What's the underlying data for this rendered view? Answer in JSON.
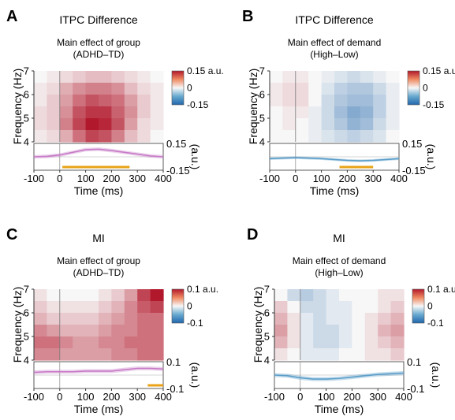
{
  "chart_data": [
    {
      "panel": "A",
      "type": "heatmap",
      "title": "ITPC Difference",
      "subtitle": [
        "Main effect of group",
        "(ADHD–TD)"
      ],
      "xlabel": "Time (ms)",
      "ylabel": "Frequency (Hz)",
      "xlim": [
        -100,
        400
      ],
      "ylim": [
        4,
        7
      ],
      "xticks": [
        "-100",
        "0",
        "100",
        "200",
        "300",
        "400"
      ],
      "yticks": [
        "4",
        "5",
        "6",
        "7"
      ],
      "x": [
        -75,
        -25,
        25,
        75,
        125,
        175,
        225,
        275,
        325,
        375
      ],
      "y": [
        6.75,
        6.25,
        5.75,
        5.25,
        4.75,
        4.25
      ],
      "z": [
        [
          0.0,
          0.01,
          0.02,
          0.03,
          0.04,
          0.04,
          0.03,
          0.02,
          0.01,
          0.0
        ],
        [
          0.01,
          0.02,
          0.05,
          0.07,
          0.08,
          0.08,
          0.07,
          0.04,
          0.02,
          0.01
        ],
        [
          0.01,
          0.03,
          0.06,
          0.09,
          0.11,
          0.1,
          0.09,
          0.06,
          0.03,
          0.01
        ],
        [
          0.02,
          0.03,
          0.07,
          0.11,
          0.13,
          0.13,
          0.1,
          0.07,
          0.03,
          0.01
        ],
        [
          0.02,
          0.03,
          0.08,
          0.12,
          0.15,
          0.14,
          0.11,
          0.06,
          0.02,
          0.01
        ],
        [
          0.01,
          0.02,
          0.05,
          0.09,
          0.12,
          0.11,
          0.08,
          0.04,
          0.02,
          0.0
        ]
      ],
      "colorbar": {
        "labels": [
          "0.15 a.u.",
          "0",
          "-0.15"
        ],
        "range": [
          -0.15,
          0.15
        ]
      },
      "trace": {
        "color": "#c77ac7",
        "x": [
          -100,
          -50,
          0,
          50,
          100,
          150,
          200,
          250,
          300,
          350,
          400
        ],
        "y": [
          0.0,
          0.005,
          0.02,
          0.05,
          0.08,
          0.085,
          0.07,
          0.05,
          0.03,
          0.01,
          0.0
        ],
        "band": 0.02,
        "ylim": [
          -0.15,
          0.15
        ],
        "yticks": [
          "0.15",
          "-0.15"
        ],
        "ylabel": "(a.u.)",
        "sig": [
          10,
          270
        ]
      }
    },
    {
      "panel": "B",
      "type": "heatmap",
      "title": "ITPC Difference",
      "subtitle": [
        "Main effect of demand",
        "(High–Low)"
      ],
      "xlabel": "Time (ms)",
      "ylabel": "Frequency (Hz)",
      "xlim": [
        -100,
        400
      ],
      "ylim": [
        4,
        7
      ],
      "xticks": [
        "-100",
        "0",
        "100",
        "200",
        "300",
        "400"
      ],
      "yticks": [
        "4",
        "5",
        "6",
        "7"
      ],
      "x": [
        -75,
        -25,
        25,
        75,
        125,
        175,
        225,
        275,
        325,
        375
      ],
      "y": [
        6.75,
        6.25,
        5.75,
        5.25,
        4.75,
        4.25
      ],
      "z": [
        [
          0.0,
          0.01,
          0.01,
          0.0,
          -0.01,
          -0.02,
          -0.03,
          -0.02,
          -0.01,
          0.0
        ],
        [
          0.01,
          0.02,
          0.02,
          0.0,
          -0.02,
          -0.04,
          -0.05,
          -0.05,
          -0.03,
          -0.01
        ],
        [
          0.01,
          0.02,
          0.02,
          0.0,
          -0.03,
          -0.05,
          -0.06,
          -0.06,
          -0.04,
          -0.01
        ],
        [
          0.0,
          0.01,
          0.01,
          -0.01,
          -0.03,
          -0.06,
          -0.08,
          -0.07,
          -0.04,
          -0.01
        ],
        [
          0.0,
          0.01,
          0.0,
          -0.01,
          -0.03,
          -0.05,
          -0.07,
          -0.06,
          -0.03,
          -0.01
        ],
        [
          0.0,
          0.0,
          0.0,
          -0.01,
          -0.02,
          -0.03,
          -0.04,
          -0.03,
          -0.02,
          0.0
        ]
      ],
      "colorbar": {
        "labels": [
          "0.15 a.u.",
          "0",
          "-0.15"
        ],
        "range": [
          -0.15,
          0.15
        ]
      },
      "trace": {
        "color": "#5b9ec9",
        "x": [
          -100,
          -50,
          0,
          50,
          100,
          150,
          200,
          250,
          300,
          350,
          400
        ],
        "y": [
          -0.02,
          -0.015,
          -0.01,
          -0.015,
          -0.02,
          -0.03,
          -0.04,
          -0.045,
          -0.04,
          -0.03,
          -0.02
        ],
        "band": 0.015,
        "ylim": [
          -0.15,
          0.15
        ],
        "yticks": [
          "0.15",
          "-0.15"
        ],
        "ylabel": "(a.u.)",
        "sig": [
          170,
          300
        ]
      }
    },
    {
      "panel": "C",
      "type": "heatmap",
      "title": "MI",
      "subtitle": [
        "Main effect of group",
        "(ADHD–TD)"
      ],
      "xlabel": "Time (ms)",
      "ylabel": "Frequency (Hz)",
      "xlim": [
        -100,
        400
      ],
      "ylim": [
        4,
        7
      ],
      "xticks": [
        "-100",
        "0",
        "100",
        "200",
        "300",
        "400"
      ],
      "yticks": [
        "4",
        "5",
        "6",
        "7"
      ],
      "x": [
        -75,
        -25,
        25,
        75,
        125,
        175,
        225,
        275,
        325,
        375
      ],
      "y": [
        6.75,
        6.25,
        5.75,
        5.25,
        4.75,
        4.25
      ],
      "z": [
        [
          0.01,
          0.0,
          0.0,
          0.0,
          0.0,
          0.01,
          0.02,
          0.04,
          0.08,
          0.1
        ],
        [
          0.02,
          0.01,
          0.01,
          0.01,
          0.01,
          0.02,
          0.03,
          0.05,
          0.07,
          0.08
        ],
        [
          0.03,
          0.02,
          0.02,
          0.02,
          0.02,
          0.03,
          0.04,
          0.05,
          0.06,
          0.06
        ],
        [
          0.05,
          0.04,
          0.03,
          0.03,
          0.03,
          0.04,
          0.05,
          0.05,
          0.06,
          0.06
        ],
        [
          0.06,
          0.06,
          0.05,
          0.04,
          0.04,
          0.05,
          0.05,
          0.06,
          0.06,
          0.06
        ],
        [
          0.05,
          0.05,
          0.04,
          0.04,
          0.04,
          0.04,
          0.05,
          0.05,
          0.06,
          0.06
        ]
      ],
      "colorbar": {
        "labels": [
          "0.1 a.u.",
          "0",
          "-0.1"
        ],
        "range": [
          -0.1,
          0.1
        ]
      },
      "trace": {
        "color": "#c77ac7",
        "x": [
          -100,
          -50,
          0,
          50,
          100,
          150,
          200,
          250,
          300,
          350,
          400
        ],
        "y": [
          0.02,
          0.025,
          0.025,
          0.025,
          0.03,
          0.03,
          0.03,
          0.04,
          0.05,
          0.05,
          0.045
        ],
        "band": 0.015,
        "ylim": [
          -0.1,
          0.1
        ],
        "yticks": [
          "0.1",
          "-0.1"
        ],
        "ylabel": "(a.u.)",
        "sig": [
          340,
          400
        ]
      }
    },
    {
      "panel": "D",
      "type": "heatmap",
      "title": "MI",
      "subtitle": [
        "Main effect of demand",
        "(High–Low)"
      ],
      "xlabel": "Time (ms)",
      "ylabel": "Frequency (Hz)",
      "xlim": [
        -100,
        400
      ],
      "ylim": [
        4,
        7
      ],
      "xticks": [
        "-100",
        "0",
        "100",
        "200",
        "300",
        "400"
      ],
      "yticks": [
        "4",
        "5",
        "6",
        "7"
      ],
      "x": [
        -75,
        -25,
        25,
        75,
        125,
        175,
        225,
        275,
        325,
        375
      ],
      "y": [
        6.75,
        6.25,
        5.75,
        5.25,
        4.75,
        4.25
      ],
      "z": [
        [
          0.0,
          -0.02,
          -0.03,
          -0.02,
          -0.01,
          0.0,
          0.0,
          0.0,
          0.01,
          0.01
        ],
        [
          0.02,
          0.0,
          -0.02,
          -0.02,
          -0.01,
          -0.01,
          0.0,
          0.0,
          0.01,
          0.02
        ],
        [
          0.03,
          0.01,
          -0.01,
          -0.02,
          -0.01,
          -0.01,
          0.0,
          0.01,
          0.02,
          0.03
        ],
        [
          0.04,
          0.01,
          -0.01,
          -0.02,
          -0.02,
          -0.01,
          0.0,
          0.01,
          0.03,
          0.04
        ],
        [
          0.03,
          0.01,
          -0.01,
          -0.02,
          -0.02,
          -0.01,
          0.0,
          0.01,
          0.02,
          0.03
        ],
        [
          0.01,
          0.0,
          -0.01,
          -0.01,
          -0.01,
          0.0,
          0.0,
          0.01,
          0.01,
          0.02
        ]
      ],
      "colorbar": {
        "labels": [
          "0.1 a.u.",
          "0",
          "-0.1"
        ],
        "range": [
          -0.1,
          0.1
        ]
      },
      "trace": {
        "color": "#5b9ec9",
        "x": [
          -100,
          -50,
          0,
          50,
          100,
          150,
          200,
          250,
          300,
          350,
          400
        ],
        "y": [
          0.0,
          -0.005,
          -0.02,
          -0.03,
          -0.03,
          -0.025,
          -0.015,
          -0.005,
          0.005,
          0.01,
          0.015
        ],
        "band": 0.015,
        "ylim": [
          -0.1,
          0.1
        ],
        "yticks": [
          "0.1",
          "-0.1"
        ],
        "ylabel": "(a.u.)",
        "sig": []
      }
    }
  ]
}
